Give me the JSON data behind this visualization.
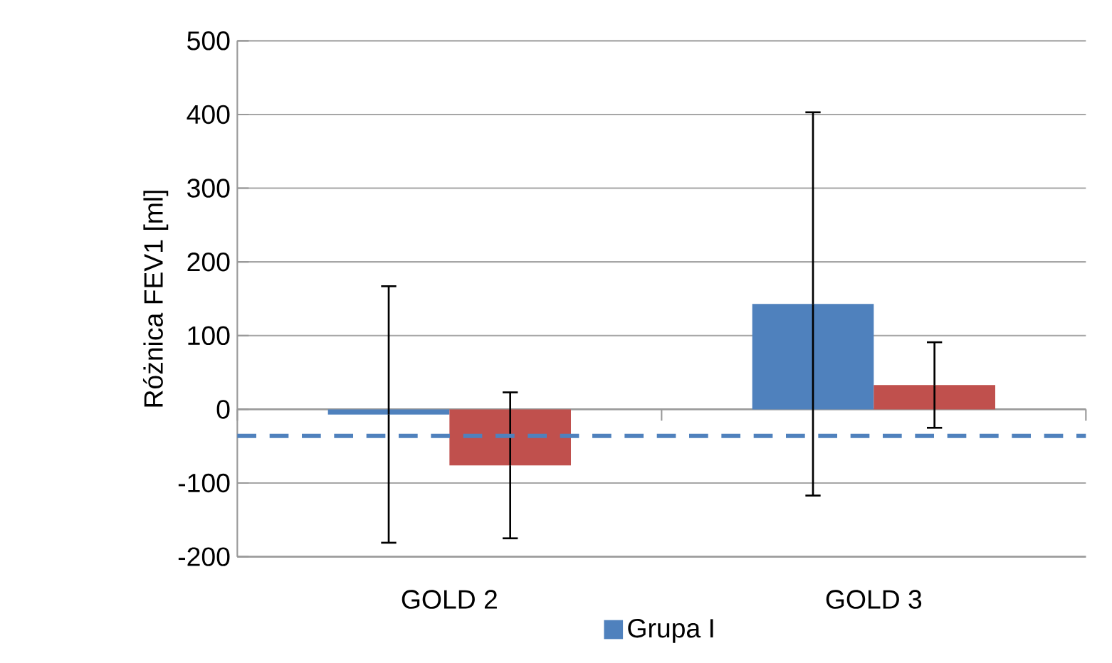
{
  "chart_data": {
    "type": "bar",
    "categories": [
      "GOLD 2",
      "GOLD 3"
    ],
    "ylabel": "Różnica FEV1 [ml]",
    "series": [
      {
        "name": "Grupa I",
        "color": "#4f81bd",
        "values": [
          -7,
          143
        ],
        "errors": [
          174,
          260
        ]
      },
      {
        "color": "#c0504d",
        "values": [
          -76,
          33
        ],
        "errors": [
          99,
          58
        ]
      }
    ],
    "ref_lines": [
      {
        "axis": "y",
        "value": -36,
        "color": "#4f81bd",
        "line_style": "dashed"
      }
    ],
    "ylim": [
      -200,
      500
    ],
    "yticks": [
      -200,
      -100,
      0,
      100,
      200,
      300,
      400,
      500
    ],
    "grid": "y",
    "legend": "bottom"
  }
}
